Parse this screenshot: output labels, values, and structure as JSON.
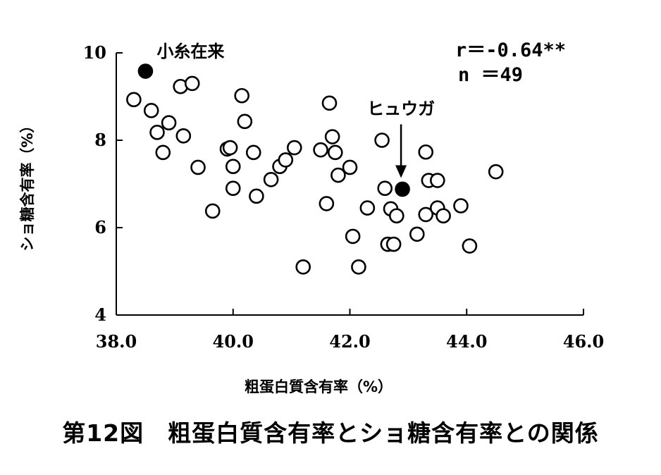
{
  "chart_data": {
    "type": "scatter",
    "xlabel": "粗蛋白質含有率（%）",
    "ylabel": "ショ糖含有率（%）",
    "xlim": [
      38.0,
      46.0
    ],
    "ylim": [
      4,
      10
    ],
    "x_ticks": [
      "38.0",
      "40.0",
      "42.0",
      "44.0",
      "46.0"
    ],
    "y_ticks": [
      "4",
      "6",
      "8",
      "10"
    ],
    "stats": [
      "r＝-0.64**",
      "n ＝49"
    ],
    "series": [
      {
        "marker": "open-circle",
        "points": [
          [
            38.3,
            8.93
          ],
          [
            38.6,
            8.68
          ],
          [
            38.7,
            8.18
          ],
          [
            38.8,
            7.72
          ],
          [
            38.9,
            8.4
          ],
          [
            39.1,
            9.23
          ],
          [
            39.15,
            8.1
          ],
          [
            39.3,
            9.3
          ],
          [
            39.4,
            7.38
          ],
          [
            39.65,
            6.38
          ],
          [
            39.9,
            7.8
          ],
          [
            39.95,
            7.83
          ],
          [
            40.0,
            7.4
          ],
          [
            40.0,
            6.9
          ],
          [
            40.15,
            9.02
          ],
          [
            40.2,
            8.43
          ],
          [
            40.35,
            7.72
          ],
          [
            40.4,
            6.72
          ],
          [
            40.65,
            7.1
          ],
          [
            40.8,
            7.4
          ],
          [
            40.9,
            7.55
          ],
          [
            41.05,
            7.83
          ],
          [
            41.2,
            5.1
          ],
          [
            41.5,
            7.78
          ],
          [
            41.6,
            6.55
          ],
          [
            41.65,
            8.85
          ],
          [
            41.7,
            8.08
          ],
          [
            41.75,
            7.72
          ],
          [
            41.8,
            7.2
          ],
          [
            42.0,
            7.38
          ],
          [
            42.05,
            5.8
          ],
          [
            42.15,
            5.1
          ],
          [
            42.3,
            6.45
          ],
          [
            42.55,
            8.0
          ],
          [
            42.6,
            6.9
          ],
          [
            42.65,
            5.62
          ],
          [
            42.7,
            6.43
          ],
          [
            42.75,
            5.62
          ],
          [
            42.8,
            6.27
          ],
          [
            43.15,
            5.85
          ],
          [
            43.3,
            7.73
          ],
          [
            43.3,
            6.3
          ],
          [
            43.35,
            7.08
          ],
          [
            43.5,
            7.08
          ],
          [
            43.5,
            6.45
          ],
          [
            43.6,
            6.27
          ],
          [
            43.9,
            6.5
          ],
          [
            44.05,
            5.58
          ],
          [
            44.5,
            7.28
          ]
        ]
      },
      {
        "marker": "filled-circle",
        "points": [
          [
            38.5,
            9.58
          ],
          [
            42.9,
            6.88
          ]
        ]
      }
    ],
    "annotations": [
      {
        "text": "小糸在来",
        "x": 38.5,
        "y": 9.58
      },
      {
        "text": "ヒュウガ",
        "x": 42.9,
        "y": 6.88,
        "arrow": true
      }
    ]
  },
  "caption": "第12図　粗蛋白質含有率とショ糖含有率との関係"
}
